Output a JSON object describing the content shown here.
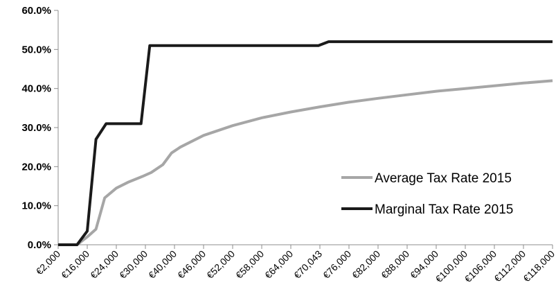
{
  "chart_data": {
    "type": "line",
    "title": "",
    "xlabel": "",
    "ylabel": "",
    "ylim": [
      0,
      60
    ],
    "y_ticks": [
      "0.0%",
      "10.0%",
      "20.0%",
      "30.0%",
      "40.0%",
      "50.0%",
      "60.0%"
    ],
    "y_tick_values": [
      0,
      10,
      20,
      30,
      40,
      50,
      60
    ],
    "x_tick_labels": [
      "€2,000",
      "€16,000",
      "€24,000",
      "€30,000",
      "€40,000",
      "€46,000",
      "€52,000",
      "€58,000",
      "€64,000",
      "€70,043",
      "€76,000",
      "€82,000",
      "€88,000",
      "€94,000",
      "€100,000",
      "€106,000",
      "€112,000",
      "€118,000"
    ],
    "x_tick_positions": [
      0,
      1,
      2,
      3,
      4,
      5,
      6,
      7,
      8,
      9,
      10,
      11,
      12,
      13,
      14,
      15,
      16,
      17
    ],
    "x_range": [
      0,
      17
    ],
    "grid": false,
    "legend": "right-middle",
    "series": [
      {
        "name": "Average Tax Rate 2015",
        "color": "#a6a6a6",
        "points": [
          [
            0,
            0
          ],
          [
            0.35,
            0
          ],
          [
            0.65,
            0
          ],
          [
            1,
            2
          ],
          [
            1.3,
            4
          ],
          [
            1.6,
            12
          ],
          [
            2,
            14.5
          ],
          [
            2.4,
            16
          ],
          [
            2.9,
            17.5
          ],
          [
            3.2,
            18.5
          ],
          [
            3.6,
            20.5
          ],
          [
            3.9,
            23.5
          ],
          [
            4.2,
            25
          ],
          [
            5,
            28
          ],
          [
            6,
            30.5
          ],
          [
            7,
            32.5
          ],
          [
            8,
            34
          ],
          [
            9,
            35.3
          ],
          [
            10,
            36.5
          ],
          [
            11,
            37.5
          ],
          [
            12,
            38.4
          ],
          [
            13,
            39.3
          ],
          [
            14,
            40
          ],
          [
            15,
            40.7
          ],
          [
            16,
            41.4
          ],
          [
            17,
            42
          ]
        ]
      },
      {
        "name": "Marginal Tax Rate 2015",
        "color": "#1a1a1a",
        "points": [
          [
            0,
            0
          ],
          [
            0.35,
            0
          ],
          [
            0.65,
            0
          ],
          [
            1,
            3.5
          ],
          [
            1.3,
            27
          ],
          [
            1.65,
            31
          ],
          [
            2.2,
            31
          ],
          [
            2.85,
            31
          ],
          [
            3.15,
            51
          ],
          [
            4,
            51
          ],
          [
            6,
            51
          ],
          [
            8,
            51
          ],
          [
            8.95,
            51
          ],
          [
            9.3,
            52
          ],
          [
            12,
            52
          ],
          [
            15,
            52
          ],
          [
            17,
            52
          ]
        ]
      }
    ]
  }
}
